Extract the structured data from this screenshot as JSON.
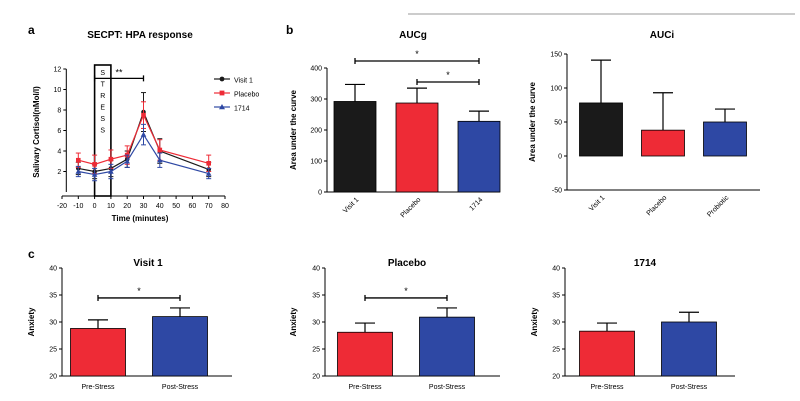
{
  "panel_labels": {
    "a": "a",
    "b": "b",
    "c": "c"
  },
  "colors": {
    "visit1": "#1a1a1a",
    "placebo": "#ee2b36",
    "treat": "#2e48a4",
    "axis": "#000000"
  },
  "chart_data": [
    {
      "id": "secpt",
      "type": "line",
      "title": "SECPT: HPA response",
      "xlabel": "Time (minutes)",
      "ylabel": "Salivary Cortisol(nMol/l)",
      "xlim": [
        -20,
        80
      ],
      "ylim": [
        0,
        12
      ],
      "xticks": [
        "-20",
        "-10",
        "0",
        "10",
        "20",
        "30",
        "40",
        "50",
        "60",
        "70",
        "80"
      ],
      "yticks": [
        "2",
        "4",
        "6",
        "8",
        "10",
        "12"
      ],
      "stress_label": [
        "S",
        "T",
        "R",
        "E",
        "S",
        "S"
      ],
      "significance": "**",
      "x": [
        -10,
        0,
        10,
        20,
        30,
        40,
        70
      ],
      "series": [
        {
          "name": "Visit 1",
          "marker": "circle",
          "color_key": "visit1",
          "values": [
            2.3,
            2.0,
            2.3,
            3.2,
            7.8,
            4.0,
            2.2
          ],
          "errors": [
            0.6,
            0.7,
            0.8,
            0.8,
            1.9,
            1.2,
            0.7
          ]
        },
        {
          "name": "Placebo",
          "marker": "square",
          "color_key": "placebo",
          "values": [
            3.1,
            2.7,
            3.2,
            3.6,
            7.5,
            4.1,
            2.8
          ],
          "errors": [
            0.7,
            0.9,
            0.9,
            0.9,
            1.3,
            1.0,
            0.8
          ]
        },
        {
          "name": "1714",
          "marker": "triangle",
          "color_key": "treat",
          "values": [
            2.0,
            1.7,
            2.0,
            3.0,
            5.6,
            3.1,
            1.8
          ],
          "errors": [
            0.5,
            0.6,
            0.7,
            0.6,
            1.0,
            0.7,
            0.5
          ]
        }
      ]
    },
    {
      "id": "aucg",
      "type": "bar",
      "title": "AUCg",
      "xlabel": "",
      "ylabel": "Area under the curve",
      "ylim": [
        0,
        400
      ],
      "yticks": [
        "0",
        "100",
        "200",
        "300",
        "400"
      ],
      "categories": [
        "Visit 1",
        "Placebo",
        "1714"
      ],
      "values": [
        292,
        287,
        228
      ],
      "errors": [
        55,
        48,
        33
      ],
      "color_keys": [
        "visit1",
        "placebo",
        "treat"
      ],
      "significance": [
        {
          "from": 0,
          "to": 2,
          "label": "*"
        },
        {
          "from": 1,
          "to": 2,
          "label": "*"
        }
      ]
    },
    {
      "id": "auci",
      "type": "bar",
      "title": "AUCi",
      "xlabel": "",
      "ylabel": "Area under the curve",
      "ylim": [
        -50,
        150
      ],
      "yticks": [
        "-50",
        "0",
        "50",
        "100",
        "150"
      ],
      "categories": [
        "Visit 1",
        "Placebo",
        "Probiotic"
      ],
      "values": [
        78,
        38,
        50
      ],
      "errors": [
        63,
        55,
        19
      ],
      "color_keys": [
        "visit1",
        "placebo",
        "treat"
      ],
      "significance": []
    },
    {
      "id": "anx_visit1",
      "type": "bar",
      "title": "Visit 1",
      "xlabel": "",
      "ylabel": "Anxiety",
      "ylim": [
        20,
        40
      ],
      "yticks": [
        "20",
        "25",
        "30",
        "35",
        "40"
      ],
      "categories": [
        "Pre-Stress",
        "Post-Stress"
      ],
      "values": [
        28.8,
        31.0
      ],
      "errors": [
        1.6,
        1.6
      ],
      "color_keys": [
        "placebo",
        "treat"
      ],
      "significance": [
        {
          "from": 0,
          "to": 1,
          "label": "*"
        }
      ]
    },
    {
      "id": "anx_placebo",
      "type": "bar",
      "title": "Placebo",
      "xlabel": "",
      "ylabel": "Anxiety",
      "ylim": [
        20,
        40
      ],
      "yticks": [
        "20",
        "25",
        "30",
        "35",
        "40"
      ],
      "categories": [
        "Pre-Stress",
        "Post-Stress"
      ],
      "values": [
        28.1,
        30.9
      ],
      "errors": [
        1.7,
        1.7
      ],
      "color_keys": [
        "placebo",
        "treat"
      ],
      "significance": [
        {
          "from": 0,
          "to": 1,
          "label": "*"
        }
      ]
    },
    {
      "id": "anx_1714",
      "type": "bar",
      "title": "1714",
      "xlabel": "",
      "ylabel": "Anxiety",
      "ylim": [
        20,
        40
      ],
      "yticks": [
        "20",
        "25",
        "30",
        "35",
        "40"
      ],
      "categories": [
        "Pre-Stress",
        "Post-Stress"
      ],
      "values": [
        28.3,
        30.0
      ],
      "errors": [
        1.5,
        1.8
      ],
      "color_keys": [
        "placebo",
        "treat"
      ],
      "significance": []
    }
  ]
}
